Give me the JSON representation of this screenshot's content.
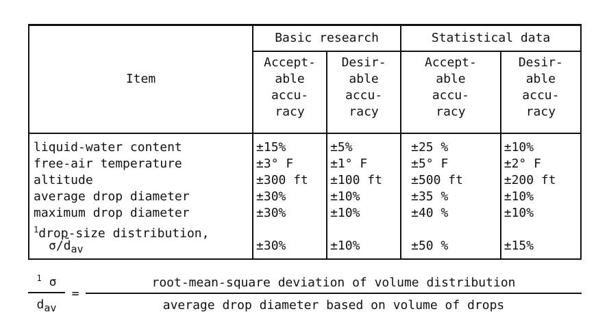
{
  "table": {
    "item_header": "Item",
    "groups": [
      "Basic research",
      "Statistical data"
    ],
    "subheaders": [
      [
        "Accept-",
        "able",
        "accu-",
        "racy"
      ],
      [
        "Desir-",
        "able",
        "accu-",
        "racy"
      ],
      [
        "Accept-",
        "able",
        "accu-",
        "racy"
      ],
      [
        "Desir-",
        "able",
        "accu-",
        "racy"
      ]
    ],
    "rows": [
      {
        "item": "liquid-water content",
        "values": [
          "±15%",
          "±5%",
          "±25 %",
          "±10%"
        ]
      },
      {
        "item": "free-air temperature",
        "values": [
          "±3° F",
          "±1° F",
          "±5° F",
          "±2° F"
        ]
      },
      {
        "item": "altitude",
        "values": [
          "±300 ft",
          "±100 ft",
          "±500 ft",
          "±200 ft"
        ]
      },
      {
        "item": "average drop diameter",
        "values": [
          "±30%",
          "±10%",
          "±35 %",
          "±10%"
        ]
      },
      {
        "item": "maximum drop diameter",
        "values": [
          "±30%",
          "±10%",
          "±40 %",
          "±10%"
        ]
      }
    ],
    "last_row": {
      "footnote_mark": "1",
      "item_line1": "drop-size distribution,",
      "item_line2": "σ/d̄",
      "item_line2_sub": "av",
      "values": [
        "±30%",
        "±10%",
        "±50 %",
        "±15%"
      ]
    }
  },
  "footnote": {
    "mark": "1",
    "numerator": "σ",
    "denominator": "d",
    "denominator_sub": "av",
    "equals": "=",
    "right_numerator": "root-mean-square deviation of volume distribution",
    "right_denominator": "average drop diameter based on volume of drops"
  }
}
